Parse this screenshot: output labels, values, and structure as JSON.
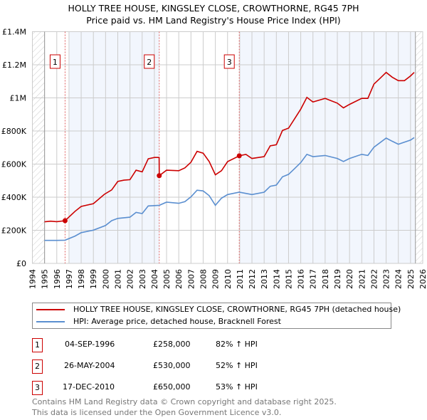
{
  "chart_data": {
    "type": "line",
    "title": "HOLLY TREE HOUSE, KINGSLEY CLOSE, CROWTHORNE, RG45 7PH",
    "subtitle": "Price paid vs. HM Land Registry's House Price Index (HPI)",
    "xlim": [
      1994,
      2026
    ],
    "ylim": [
      0,
      1400000
    ],
    "y_ticks": [
      {
        "v": 0,
        "label": "£0"
      },
      {
        "v": 200000,
        "label": "£200K"
      },
      {
        "v": 400000,
        "label": "£400K"
      },
      {
        "v": 600000,
        "label": "£600K"
      },
      {
        "v": 800000,
        "label": "£800K"
      },
      {
        "v": 1000000,
        "label": "£1M"
      },
      {
        "v": 1200000,
        "label": "£1.2M"
      },
      {
        "v": 1400000,
        "label": "£1.4M"
      }
    ],
    "x_ticks": [
      "1994",
      "1995",
      "1996",
      "1997",
      "1998",
      "1999",
      "2000",
      "2001",
      "2002",
      "2003",
      "2004",
      "2005",
      "2006",
      "2007",
      "2008",
      "2009",
      "2010",
      "2011",
      "2012",
      "2013",
      "2014",
      "2015",
      "2016",
      "2017",
      "2018",
      "2019",
      "2020",
      "2021",
      "2022",
      "2023",
      "2024",
      "2025",
      "2026"
    ],
    "grid": true,
    "series": [
      {
        "name": "HOLLY TREE HOUSE, KINGSLEY CLOSE, CROWTHORNE, RG45 7PH (detached house)",
        "color": "#cc0000",
        "x": [
          1995,
          1995.5,
          1996,
          1996.68,
          1997.5,
          1998,
          1999,
          1999.9,
          2000.5,
          2001,
          2001.5,
          2002,
          2002.5,
          2003,
          2003.5,
          2004,
          2004.39,
          2004.4,
          2005,
          2006,
          2006.5,
          2007,
          2007.5,
          2008,
          2008.5,
          2009,
          2009.5,
          2010,
          2010.96,
          2011.5,
          2012,
          2013,
          2013.5,
          2014,
          2014.5,
          2015,
          2015.5,
          2016,
          2016.5,
          2017,
          2018,
          2019,
          2019.5,
          2020,
          2021,
          2021.5,
          2022,
          2022.5,
          2023,
          2023.5,
          2024,
          2024.5,
          2025,
          2025.3
        ],
        "values": [
          251000,
          255000,
          252000,
          258000,
          315000,
          344000,
          361000,
          417000,
          444000,
          495000,
          503000,
          506000,
          563000,
          553000,
          632000,
          640000,
          640000,
          530000,
          563000,
          560000,
          577000,
          611000,
          677000,
          666000,
          615000,
          535000,
          560000,
          615000,
          650000,
          659000,
          634000,
          645000,
          710000,
          717000,
          803000,
          817000,
          874000,
          932000,
          1003000,
          975000,
          997000,
          968000,
          940000,
          961000,
          997000,
          997000,
          1083000,
          1118000,
          1154000,
          1125000,
          1104000,
          1104000,
          1133000,
          1154000
        ]
      },
      {
        "name": "HPI: Average price, detached house, Bracknell Forest",
        "color": "#5b8fd0",
        "x": [
          1995,
          1996,
          1996.68,
          1997.5,
          1998,
          1999,
          2000,
          2000.5,
          2001,
          2002,
          2002.5,
          2003,
          2003.5,
          2004.4,
          2005,
          2006,
          2006.5,
          2007,
          2007.5,
          2008,
          2008.5,
          2009,
          2009.5,
          2010,
          2010.96,
          2011.5,
          2012,
          2013,
          2013.5,
          2014,
          2014.5,
          2015,
          2015.5,
          2016,
          2016.5,
          2017,
          2018,
          2019,
          2019.5,
          2020,
          2021,
          2021.5,
          2022,
          2023,
          2023.5,
          2024,
          2025,
          2025.3
        ],
        "values": [
          139000,
          139000,
          140000,
          165000,
          186000,
          201000,
          229000,
          258000,
          272000,
          279000,
          308000,
          301000,
          347000,
          351000,
          370000,
          363000,
          373000,
          402000,
          442000,
          438000,
          409000,
          351000,
          394000,
          416000,
          430000,
          423000,
          416000,
          430000,
          466000,
          473000,
          523000,
          538000,
          573000,
          609000,
          659000,
          645000,
          652000,
          634000,
          616000,
          634000,
          659000,
          652000,
          702000,
          757000,
          738000,
          720000,
          745000,
          760000
        ]
      }
    ],
    "sales": [
      {
        "n": "1",
        "x": 1996.68,
        "value": 258000,
        "date": "04-SEP-1996",
        "price": "£258,000",
        "hpi": "82% ↑ HPI"
      },
      {
        "n": "2",
        "x": 2004.4,
        "value": 530000,
        "date": "26-MAY-2004",
        "price": "£530,000",
        "hpi": "52% ↑ HPI"
      },
      {
        "n": "3",
        "x": 2010.96,
        "value": 650000,
        "date": "17-DEC-2010",
        "price": "£650,000",
        "hpi": "53% ↑ HPI"
      }
    ],
    "legend_position": "below"
  },
  "footer": [
    "Contains HM Land Registry data © Crown copyright and database right 2025.",
    "This data is licensed under the Open Government Licence v3.0."
  ]
}
